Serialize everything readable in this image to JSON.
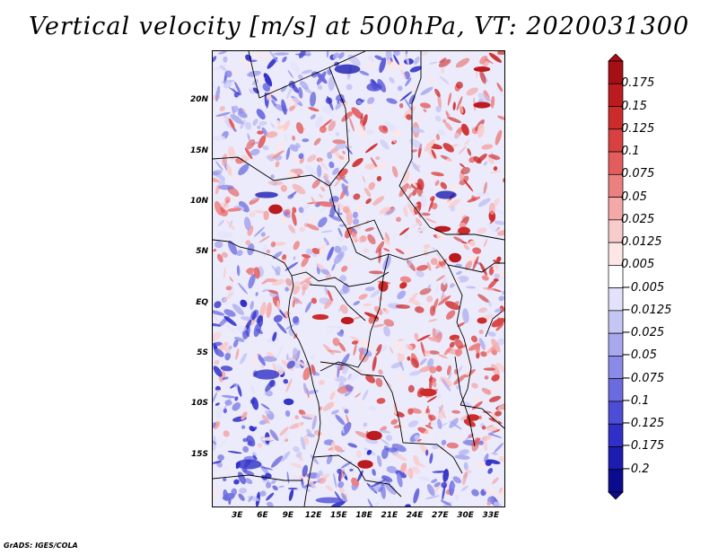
{
  "title": "Vertical velocity [m/s] at 500hPa, VT: 2020031300",
  "credit": "GrADS: IGES/COLA",
  "map": {
    "lat_labels": [
      "20N",
      "15N",
      "10N",
      "5N",
      "EQ",
      "5S",
      "10S",
      "15S"
    ],
    "lon_labels": [
      "3E",
      "6E",
      "9E",
      "12E",
      "15E",
      "18E",
      "21E",
      "24E",
      "27E",
      "30E",
      "33E"
    ],
    "lon_range": [
      0,
      34.5
    ],
    "lat_range": [
      -20,
      25
    ]
  },
  "colorbar": {
    "labels": [
      "0.175",
      "0.15",
      "0.125",
      "0.1",
      "0.075",
      "0.05",
      "0.025",
      "0.0125",
      "0.005",
      "−0.005",
      "−0.0125",
      "−0.025",
      "−0.05",
      "−0.075",
      "−0.1",
      "−0.125",
      "−0.175",
      "−0.2"
    ],
    "colors": [
      "#a50f15",
      "#bb1a1e",
      "#cc2b2b",
      "#d94040",
      "#e35d5d",
      "#ec8080",
      "#f4a8a8",
      "#f9cccc",
      "#fde6e6",
      "#ffffff",
      "#e2e2fb",
      "#c6c6f5",
      "#a8a8ef",
      "#8a8ae8",
      "#6b6be0",
      "#4d4dd6",
      "#3030c8",
      "#1c1cb0",
      "#0b0b8f"
    ]
  },
  "chart_data": {
    "type": "heatmap",
    "title": "Vertical velocity [m/s] at 500hPa, VT: 2020031300",
    "variable": "Vertical velocity",
    "units": "m/s",
    "level": "500hPa",
    "valid_time": "2020031300",
    "x_ticks": [
      "3E",
      "6E",
      "9E",
      "12E",
      "15E",
      "18E",
      "21E",
      "24E",
      "27E",
      "30E",
      "33E"
    ],
    "y_ticks": [
      "20N",
      "15N",
      "10N",
      "5N",
      "EQ",
      "5S",
      "10S",
      "15S"
    ],
    "color_levels": [
      -0.2,
      -0.175,
      -0.125,
      -0.1,
      -0.075,
      -0.05,
      -0.025,
      -0.0125,
      -0.005,
      0.005,
      0.0125,
      0.025,
      0.05,
      0.075,
      0.1,
      0.125,
      0.15,
      0.175
    ]
  }
}
